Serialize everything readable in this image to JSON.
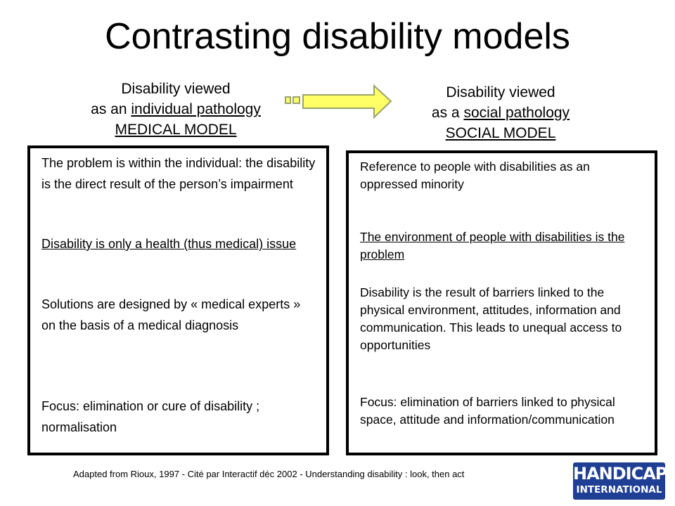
{
  "title": "Contrasting disability models",
  "left": {
    "heading_line1": "Disability viewed",
    "heading_prefix": "as an ",
    "heading_underlined": "individual pathology",
    "heading_line3": "MEDICAL MODEL",
    "paragraphs": [
      "The problem is within the individual: the disability is the direct result of the person’s impairment",
      "Disability is only a health (thus medical) issue",
      "Solutions are designed by « medical experts » on the basis of a medical diagnosis",
      "Focus: elimination or cure of disability ; normalisation"
    ]
  },
  "right": {
    "heading_line1": "Disability viewed",
    "heading_prefix": "as a ",
    "heading_underlined": "social pathology",
    "heading_line3": "SOCIAL MODEL",
    "paragraphs": [
      "Reference to people with disabilities as an oppressed minority",
      "The environment of people with disabilities is the problem",
      "Disability is the result of barriers linked to the physical environment, attitudes, information and communication. This leads to unequal access to opportunities",
      "Focus: elimination of barriers linked to physical space, attitude and information/communication"
    ]
  },
  "credit": "Adapted from Rioux, 1997 - Cité par Interactif déc 2002  - Understanding disability : look, then act",
  "logo": {
    "line1": "HANDICAP",
    "line2": "INTERNATIONAL"
  },
  "colors": {
    "arrow_fill": "#ffff66",
    "arrow_stroke": "#9aa36a",
    "logo_bg": "#1f3f95"
  }
}
